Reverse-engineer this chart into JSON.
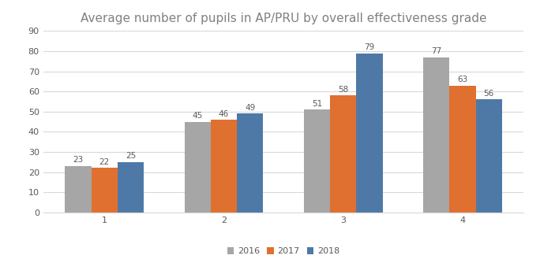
{
  "title": "Average number of pupils in AP/PRU by overall effectiveness grade",
  "categories": [
    "1",
    "2",
    "3",
    "4"
  ],
  "series": {
    "2016": [
      23,
      45,
      51,
      77
    ],
    "2017": [
      22,
      46,
      58,
      63
    ],
    "2018": [
      25,
      49,
      79,
      56
    ]
  },
  "colors": {
    "2016": "#a6a6a6",
    "2017": "#e07030",
    "2018": "#4e79a7"
  },
  "ylim": [
    0,
    90
  ],
  "yticks": [
    0,
    10,
    20,
    30,
    40,
    50,
    60,
    70,
    80,
    90
  ],
  "bar_width": 0.22,
  "legend_labels": [
    "2016",
    "2017",
    "2018"
  ],
  "background_color": "#ffffff",
  "plot_bg_color": "#ffffff",
  "grid_color": "#d9d9d9",
  "title_fontsize": 11,
  "title_color": "#808080",
  "label_fontsize": 7.5,
  "label_color": "#595959",
  "tick_fontsize": 8,
  "tick_color": "#595959",
  "legend_fontsize": 8,
  "border_color": "#d9d9d9"
}
